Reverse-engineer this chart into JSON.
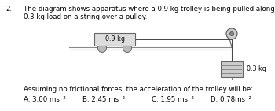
{
  "question_number": "2.",
  "question_text_line1": "The diagram shows apparatus where a 0.9 kg trolley is being pulled along by a",
  "question_text_line2": "0.3 kg load on a string over a pulley.",
  "trolley_mass": "0.9 kg",
  "hanging_mass": "0.3 kg",
  "assumption_text": "Assuming no frictional forces, the acceleration of the trolley will be:",
  "option_A": "A. 3.00 ms⁻²",
  "option_B": "B. 2.45 ms⁻²",
  "option_C": "C. 1.95 ms⁻²",
  "option_D": "D. 0.78ms⁻²",
  "bg_color": "#ffffff",
  "text_color": "#000000"
}
